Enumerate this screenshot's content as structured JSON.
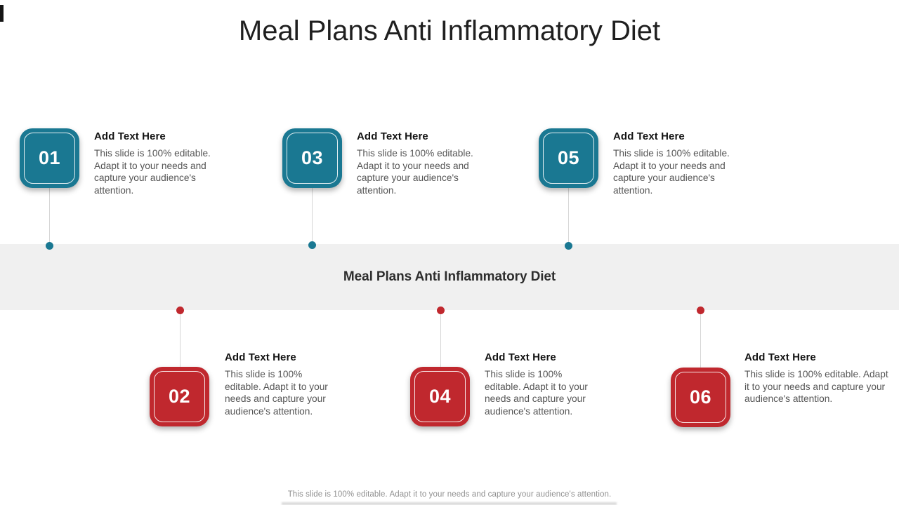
{
  "slide": {
    "title": "Meal Plans Anti Inflammatory Diet",
    "center_band": {
      "title": "Meal Plans Anti Inflammatory Diet"
    },
    "footer": {
      "note": "This slide is 100% editable. Adapt it to your needs and capture your audience's attention."
    },
    "items": [
      {
        "number": "01",
        "row": "top",
        "heading": "Add Text Here",
        "body": "This slide is 100% editable. Adapt it to your needs and capture your audience's attention."
      },
      {
        "number": "02",
        "row": "bottom",
        "heading": "Add Text Here",
        "body": "This slide is 100% editable. Adapt it to your needs and capture your audience's attention."
      },
      {
        "number": "03",
        "row": "top",
        "heading": "Add Text Here",
        "body": "This slide is 100% editable. Adapt it to your needs and capture your audience's attention."
      },
      {
        "number": "04",
        "row": "bottom",
        "heading": "Add Text Here",
        "body": "This slide is 100% editable. Adapt it to your needs and capture your audience's attention."
      },
      {
        "number": "05",
        "row": "top",
        "heading": "Add Text Here",
        "body": "This slide is 100% editable. Adapt it to your needs and capture your audience's attention."
      },
      {
        "number": "06",
        "row": "bottom",
        "heading": "Add Text Here",
        "body": "This slide is 100% editable. Adapt it to your needs and capture your audience's attention."
      }
    ],
    "colors": {
      "teal": "#1A7892",
      "red": "#C0282E",
      "band_bg": "#F0F0F0",
      "connector": "#D6D6D6"
    }
  }
}
